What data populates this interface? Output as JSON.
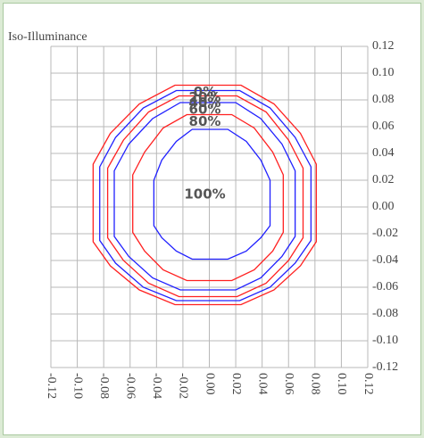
{
  "chart_data": {
    "type": "contour",
    "title": "Iso-Illuminance",
    "xlim": [
      -0.12,
      0.12
    ],
    "ylim": [
      -0.12,
      0.12
    ],
    "xticks": [
      -0.12,
      {
        "value": -0.1,
        "label": "-0.10"
      },
      -0.08,
      -0.06,
      -0.04,
      -0.02,
      {
        "value": 0,
        "label": "0.00"
      },
      0.02,
      0.04,
      0.06,
      0.08,
      {
        "value": 0.1,
        "label": "0.10"
      },
      0.12
    ],
    "yticks": [
      -0.12,
      {
        "value": -0.1,
        "label": "-0.10"
      },
      -0.08,
      -0.06,
      -0.04,
      -0.02,
      {
        "value": 0,
        "label": "0.00"
      },
      0.02,
      0.04,
      0.06,
      0.08,
      {
        "value": 0.1,
        "label": "0.10"
      },
      0.12
    ],
    "grid": true,
    "series": [
      {
        "name": "0%",
        "color": "#ff2020",
        "x": [
          -0.026,
          0.024,
          0.049,
          0.069,
          0.081,
          0.081,
          0.069,
          0.049,
          0.024,
          -0.026,
          -0.053,
          -0.075,
          -0.088,
          -0.088,
          -0.075,
          -0.053
        ],
        "y": [
          0.091,
          0.091,
          0.077,
          0.055,
          0.032,
          -0.026,
          -0.044,
          -0.062,
          -0.073,
          -0.073,
          -0.062,
          -0.044,
          -0.026,
          0.032,
          0.055,
          0.077
        ]
      },
      {
        "name": "20%",
        "color": "#2020ff",
        "x": [
          -0.025,
          0.023,
          0.046,
          0.065,
          0.077,
          0.077,
          0.065,
          0.046,
          0.023,
          -0.025,
          -0.05,
          -0.071,
          -0.083,
          -0.083,
          -0.071,
          -0.05
        ],
        "y": [
          0.087,
          0.087,
          0.074,
          0.052,
          0.03,
          -0.025,
          -0.042,
          -0.06,
          -0.07,
          -0.07,
          -0.06,
          -0.042,
          -0.025,
          0.03,
          0.052,
          0.074
        ]
      },
      {
        "name": "40%",
        "color": "#ff2020",
        "x": [
          -0.023,
          0.021,
          0.043,
          0.06,
          0.071,
          0.071,
          0.06,
          0.043,
          0.021,
          -0.023,
          -0.046,
          -0.065,
          -0.077,
          -0.077,
          -0.065,
          -0.046
        ],
        "y": [
          0.083,
          0.083,
          0.071,
          0.05,
          0.029,
          -0.023,
          -0.04,
          -0.057,
          -0.067,
          -0.067,
          -0.057,
          -0.04,
          -0.023,
          0.029,
          0.05,
          0.071
        ]
      },
      {
        "name": "60%",
        "color": "#2020ff",
        "x": [
          -0.022,
          0.02,
          0.039,
          0.055,
          0.065,
          0.065,
          0.055,
          0.039,
          0.02,
          -0.022,
          -0.043,
          -0.061,
          -0.072,
          -0.072,
          -0.061,
          -0.043
        ],
        "y": [
          0.078,
          0.078,
          0.066,
          0.047,
          0.027,
          -0.022,
          -0.037,
          -0.053,
          -0.062,
          -0.062,
          -0.053,
          -0.037,
          -0.022,
          0.027,
          0.047,
          0.066
        ]
      },
      {
        "name": "80%",
        "color": "#ff2020",
        "x": [
          -0.017,
          0.017,
          0.034,
          0.048,
          0.056,
          0.056,
          0.048,
          0.034,
          0.017,
          -0.017,
          -0.035,
          -0.049,
          -0.058,
          -0.058,
          -0.049,
          -0.035
        ],
        "y": [
          0.069,
          0.069,
          0.059,
          0.041,
          0.024,
          -0.019,
          -0.033,
          -0.047,
          -0.055,
          -0.055,
          -0.047,
          -0.033,
          -0.019,
          0.024,
          0.041,
          0.059
        ]
      },
      {
        "name": "100%",
        "color": "#2020ff",
        "x": [
          -0.013,
          0.014,
          0.028,
          0.039,
          0.046,
          0.046,
          0.039,
          0.028,
          0.014,
          -0.013,
          -0.025,
          -0.036,
          -0.042,
          -0.042,
          -0.036,
          -0.025
        ],
        "y": [
          0.058,
          0.058,
          0.049,
          0.035,
          0.02,
          -0.014,
          -0.023,
          -0.033,
          -0.039,
          -0.039,
          -0.033,
          -0.023,
          -0.014,
          0.02,
          0.035,
          0.049
        ]
      }
    ]
  }
}
